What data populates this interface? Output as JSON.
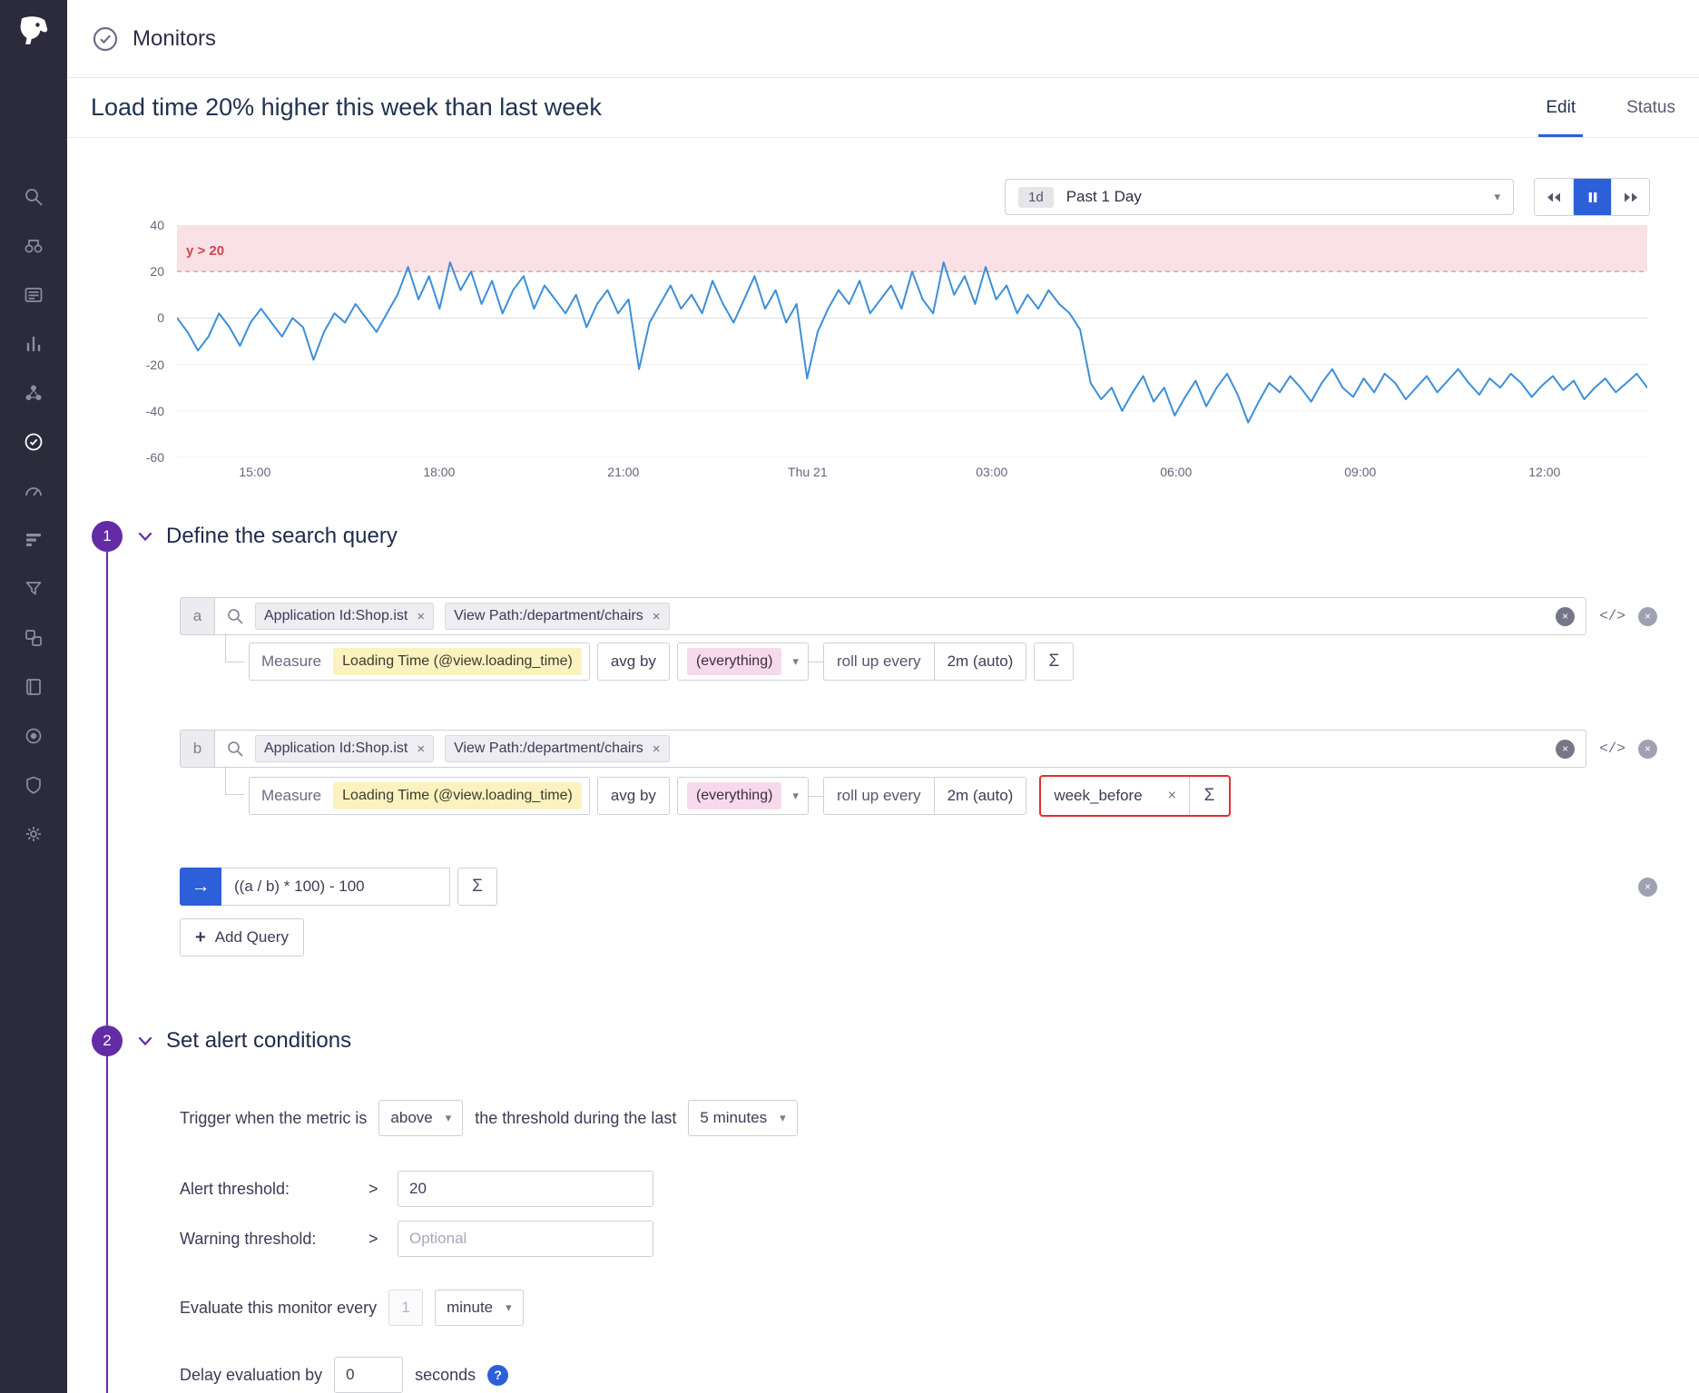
{
  "header": {
    "title": "Monitors"
  },
  "monitor": {
    "title": "Load time 20% higher this week than last week",
    "tabs": {
      "edit": "Edit",
      "status": "Status"
    }
  },
  "chart": {
    "range_badge": "1d",
    "range_label": "Past 1 Day",
    "threshold_label": "y > 20",
    "threshold": 20,
    "y_max": 40,
    "y_min": -60,
    "y_ticks": [
      40,
      20,
      0,
      -20,
      -40,
      -60
    ],
    "x_ticks": [
      "15:00",
      "18:00",
      "21:00",
      "Thu 21",
      "03:00",
      "06:00",
      "09:00",
      "12:00"
    ],
    "line_color": "#3d8fd8",
    "values": [
      0,
      -6,
      -14,
      -8,
      2,
      -4,
      -12,
      -2,
      4,
      -2,
      -8,
      0,
      -4,
      -18,
      -6,
      2,
      -2,
      6,
      0,
      -6,
      2,
      10,
      22,
      8,
      18,
      4,
      24,
      12,
      20,
      6,
      16,
      2,
      12,
      18,
      4,
      14,
      8,
      2,
      10,
      -4,
      6,
      12,
      2,
      8,
      -22,
      -2,
      6,
      14,
      4,
      10,
      2,
      16,
      6,
      -2,
      8,
      18,
      4,
      12,
      -2,
      6,
      -26,
      -6,
      4,
      12,
      6,
      16,
      2,
      8,
      14,
      4,
      20,
      8,
      2,
      24,
      10,
      18,
      6,
      22,
      8,
      14,
      2,
      10,
      4,
      12,
      6,
      2,
      -5,
      -28,
      -35,
      -30,
      -40,
      -32,
      -25,
      -36,
      -30,
      -42,
      -34,
      -27,
      -38,
      -30,
      -24,
      -33,
      -45,
      -36,
      -28,
      -32,
      -25,
      -30,
      -36,
      -28,
      -22,
      -30,
      -34,
      -26,
      -32,
      -24,
      -28,
      -35,
      -30,
      -25,
      -32,
      -27,
      -22,
      -28,
      -33,
      -26,
      -30,
      -24,
      -28,
      -34,
      -29,
      -25,
      -31,
      -27,
      -35,
      -30,
      -26,
      -32,
      -28,
      -24,
      -30
    ]
  },
  "section1": {
    "number": "1",
    "title": "Define the search query",
    "queries": [
      {
        "letter": "a",
        "tags": [
          "Application Id:Shop.ist",
          "View Path:/department/chairs"
        ],
        "measure_label": "Measure",
        "metric": "Loading Time (@view.loading_time)",
        "agg_label": "avg by",
        "group": "(everything)",
        "rollup_label": "roll up every",
        "rollup": "2m (auto)"
      },
      {
        "letter": "b",
        "tags": [
          "Application Id:Shop.ist",
          "View Path:/department/chairs"
        ],
        "measure_label": "Measure",
        "metric": "Loading Time (@view.loading_time)",
        "agg_label": "avg by",
        "group": "(everything)",
        "rollup_label": "roll up every",
        "rollup": "2m (auto)",
        "timeshift": "week_before"
      }
    ],
    "formula": "((a / b) * 100) - 100",
    "add_query_label": "Add Query"
  },
  "section2": {
    "number": "2",
    "title": "Set alert conditions",
    "trigger": {
      "text_before": "Trigger when the metric is",
      "operator": "above",
      "text_middle": "the threshold during the last",
      "window": "5 minutes"
    },
    "alert_threshold": {
      "label": "Alert threshold:",
      "comparator": ">",
      "value": "20"
    },
    "warning_threshold": {
      "label": "Warning threshold:",
      "comparator": ">",
      "placeholder": "Optional"
    },
    "evaluate": {
      "label": "Evaluate this monitor every",
      "value": "1",
      "unit": "minute"
    },
    "delay": {
      "label": "Delay evaluation by",
      "value": "0",
      "suffix": "seconds"
    }
  }
}
